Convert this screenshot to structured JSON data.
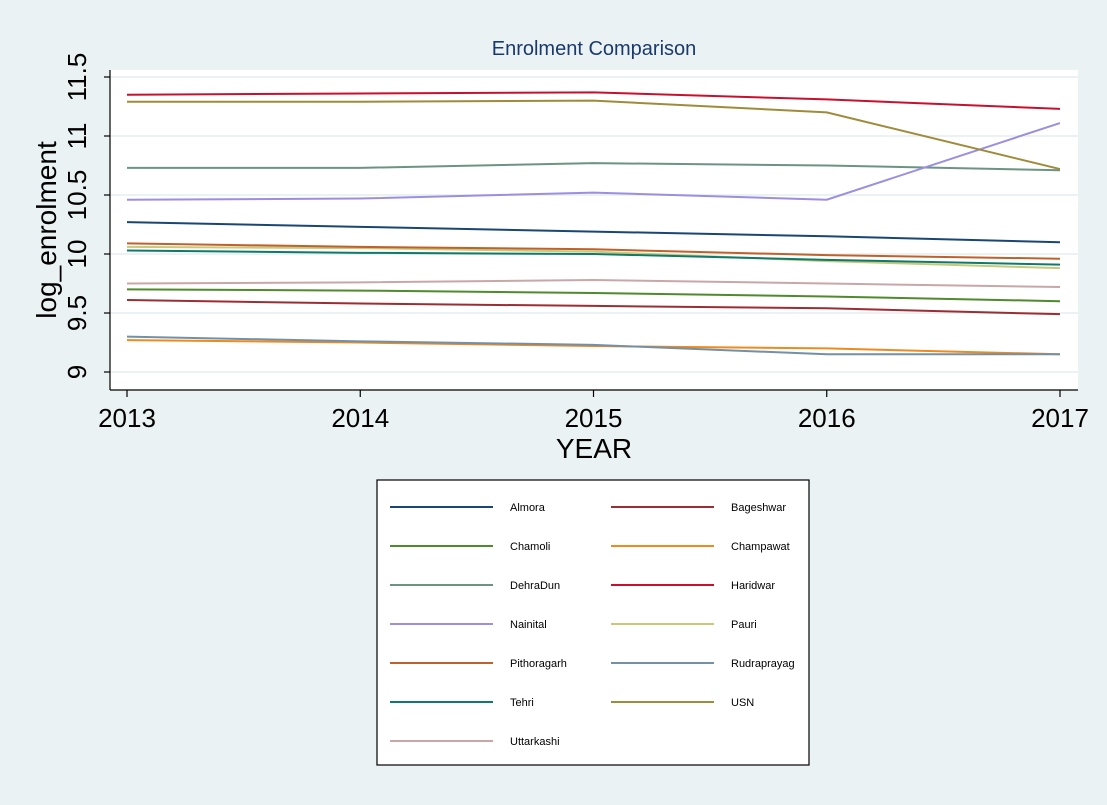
{
  "chart_data": {
    "type": "line",
    "title": "Enrolment Comparison",
    "xlabel": "YEAR",
    "ylabel": "log_enrolment",
    "x": [
      2013,
      2014,
      2015,
      2016,
      2017
    ],
    "xticks": [
      "2013",
      "2014",
      "2015",
      "2016",
      "2017"
    ],
    "yticks": [
      "9",
      "9.5",
      "10",
      "10.5",
      "11",
      "11.5"
    ],
    "ytick_values": [
      9,
      9.5,
      10,
      10.5,
      11,
      11.5
    ],
    "ylim": [
      8.85,
      11.65
    ],
    "grid": "horizontal",
    "legend_position": "bottom",
    "series": [
      {
        "name": "Almora",
        "color": "#1a4674",
        "values": [
          10.27,
          10.23,
          10.19,
          10.15,
          10.1
        ]
      },
      {
        "name": "Bageshwar",
        "color": "#9b2e34",
        "values": [
          9.61,
          9.58,
          9.56,
          9.54,
          9.49
        ]
      },
      {
        "name": "Chamoli",
        "color": "#4f8a2c",
        "values": [
          9.7,
          9.69,
          9.67,
          9.64,
          9.6
        ]
      },
      {
        "name": "Champawat",
        "color": "#ef8a1c",
        "values": [
          9.27,
          9.25,
          9.22,
          9.2,
          9.15
        ]
      },
      {
        "name": "DehraDun",
        "color": "#6d9383",
        "values": [
          10.73,
          10.73,
          10.77,
          10.75,
          10.71
        ]
      },
      {
        "name": "Haridwar",
        "color": "#c8102e",
        "values": [
          11.35,
          11.36,
          11.37,
          11.31,
          11.23
        ]
      },
      {
        "name": "Nainital",
        "color": "#9c8ee0",
        "values": [
          10.46,
          10.47,
          10.52,
          10.46,
          11.11
        ]
      },
      {
        "name": "Pauri",
        "color": "#c9c97a",
        "values": [
          10.06,
          10.05,
          10.02,
          9.94,
          9.88
        ]
      },
      {
        "name": "Pithoragarh",
        "color": "#c0602a",
        "values": [
          10.09,
          10.06,
          10.04,
          9.99,
          9.96
        ]
      },
      {
        "name": "Rudraprayag",
        "color": "#7490a6",
        "values": [
          9.3,
          9.26,
          9.23,
          9.15,
          9.15
        ]
      },
      {
        "name": "Tehri",
        "color": "#0f7a6b",
        "values": [
          10.03,
          10.01,
          10.0,
          9.95,
          9.91
        ]
      },
      {
        "name": "USN",
        "color": "#a08b3a",
        "values": [
          11.29,
          11.29,
          11.3,
          11.2,
          10.72
        ]
      },
      {
        "name": "Uttarkashi",
        "color": "#c9a7a9",
        "values": [
          9.75,
          9.76,
          9.78,
          9.75,
          9.72
        ]
      }
    ]
  }
}
